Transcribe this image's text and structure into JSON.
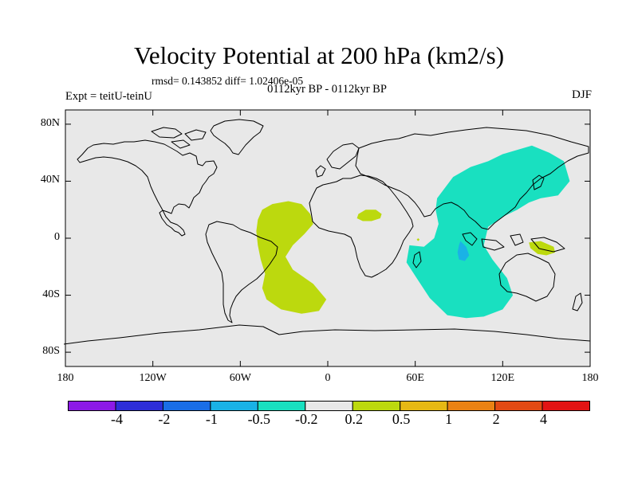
{
  "title": "Velocity Potential at 200 hPa (km2/s)",
  "stats_line": "rmsd= 0.143852 diff= 1.02406e-05",
  "subtitle": "0112kyr BP - 0112kyr BP",
  "left_label": "Expt = teitU-teinU",
  "right_label": "DJF",
  "map": {
    "lon_range": [
      -180,
      180
    ],
    "lat_range": [
      -90,
      90
    ],
    "lat_ticks": [
      {
        "value": 80,
        "label": "80N"
      },
      {
        "value": 40,
        "label": "40N"
      },
      {
        "value": 0,
        "label": "0"
      },
      {
        "value": -40,
        "label": "40S"
      },
      {
        "value": -80,
        "label": "80S"
      }
    ],
    "lon_ticks": [
      {
        "value": -180,
        "label": "180"
      },
      {
        "value": -120,
        "label": "120W"
      },
      {
        "value": -60,
        "label": "60W"
      },
      {
        "value": 0,
        "label": "0"
      },
      {
        "value": 60,
        "label": "60E"
      },
      {
        "value": 120,
        "label": "120E"
      },
      {
        "value": 180,
        "label": "180"
      }
    ],
    "background_color": "#e8e8e8",
    "regions": [
      {
        "name": "atlantic-positive",
        "bin": "0.2 to 0.5",
        "color": "#bcd90e",
        "polygon": [
          [
            -45,
            20
          ],
          [
            -38,
            24
          ],
          [
            -27,
            26
          ],
          [
            -18,
            24
          ],
          [
            -12,
            17
          ],
          [
            -10,
            10
          ],
          [
            -16,
            3
          ],
          [
            -24,
            -5
          ],
          [
            -29,
            -13
          ],
          [
            -24,
            -22
          ],
          [
            -10,
            -32
          ],
          [
            -1,
            -43
          ],
          [
            -6,
            -51
          ],
          [
            -18,
            -53
          ],
          [
            -32,
            -50
          ],
          [
            -42,
            -43
          ],
          [
            -45,
            -35
          ],
          [
            -43,
            -25
          ],
          [
            -46,
            -15
          ],
          [
            -48,
            -5
          ],
          [
            -49,
            5
          ],
          [
            -48,
            13
          ]
        ]
      },
      {
        "name": "africa-positive",
        "bin": "0.2 to 0.5",
        "color": "#bcd90e",
        "polygon": [
          [
            21,
            17
          ],
          [
            26,
            20
          ],
          [
            33,
            20
          ],
          [
            37,
            17
          ],
          [
            36,
            14
          ],
          [
            30,
            12
          ],
          [
            24,
            12
          ],
          [
            20,
            14
          ]
        ]
      },
      {
        "name": "indo-pacific-negative",
        "bin": "-0.5 to -0.2",
        "color": "#19e0c0",
        "polygon": [
          [
            75,
            28
          ],
          [
            86,
            43
          ],
          [
            98,
            50
          ],
          [
            110,
            54
          ],
          [
            120,
            59
          ],
          [
            130,
            62
          ],
          [
            140,
            65
          ],
          [
            152,
            60
          ],
          [
            162,
            54
          ],
          [
            166,
            40
          ],
          [
            158,
            30
          ],
          [
            146,
            28
          ],
          [
            138,
            25
          ],
          [
            130,
            20
          ],
          [
            120,
            15
          ],
          [
            110,
            8
          ],
          [
            107,
            -5
          ],
          [
            113,
            -15
          ],
          [
            123,
            -28
          ],
          [
            127,
            -40
          ],
          [
            120,
            -50
          ],
          [
            107,
            -55
          ],
          [
            95,
            -56
          ],
          [
            82,
            -54
          ],
          [
            70,
            -42
          ],
          [
            61,
            -28
          ],
          [
            54,
            -17
          ],
          [
            56,
            -5
          ],
          [
            66,
            -6
          ],
          [
            73,
            0
          ],
          [
            76,
            10
          ],
          [
            74,
            20
          ]
        ]
      },
      {
        "name": "indian-ocean-core",
        "bin": "-1 to -0.5",
        "color": "#1ab2e6",
        "polygon": [
          [
            91,
            -2
          ],
          [
            95,
            -6
          ],
          [
            97,
            -12
          ],
          [
            94,
            -16
          ],
          [
            90,
            -15
          ],
          [
            89,
            -10
          ],
          [
            90,
            -5
          ]
        ]
      },
      {
        "name": "maritime-continent-positive",
        "bin": "0.2 to 0.5",
        "color": "#bcd90e",
        "polygon": [
          [
            138,
            -3
          ],
          [
            146,
            -2
          ],
          [
            155,
            -6
          ],
          [
            156,
            -10
          ],
          [
            150,
            -12
          ],
          [
            144,
            -11
          ],
          [
            139,
            -7
          ]
        ]
      },
      {
        "name": "africa-dot",
        "bin": "0.2 to 0.5",
        "color": "#bcd90e",
        "polygon": [
          [
            61,
            -1
          ],
          [
            62,
            0
          ],
          [
            63,
            -1
          ],
          [
            62,
            -2
          ]
        ]
      }
    ]
  },
  "colorbar": {
    "colors": [
      "#8c1ae6",
      "#2d2ed8",
      "#1a6ee6",
      "#1ab2e6",
      "#19e0c0",
      "#e8e8e8",
      "#bcd90e",
      "#e6b814",
      "#ea8214",
      "#e24a14",
      "#e21414"
    ],
    "labels": [
      "-4",
      "-2",
      "-1",
      "-0.5",
      "-0.2",
      "0.2",
      "0.5",
      "1",
      "2",
      "4"
    ]
  }
}
